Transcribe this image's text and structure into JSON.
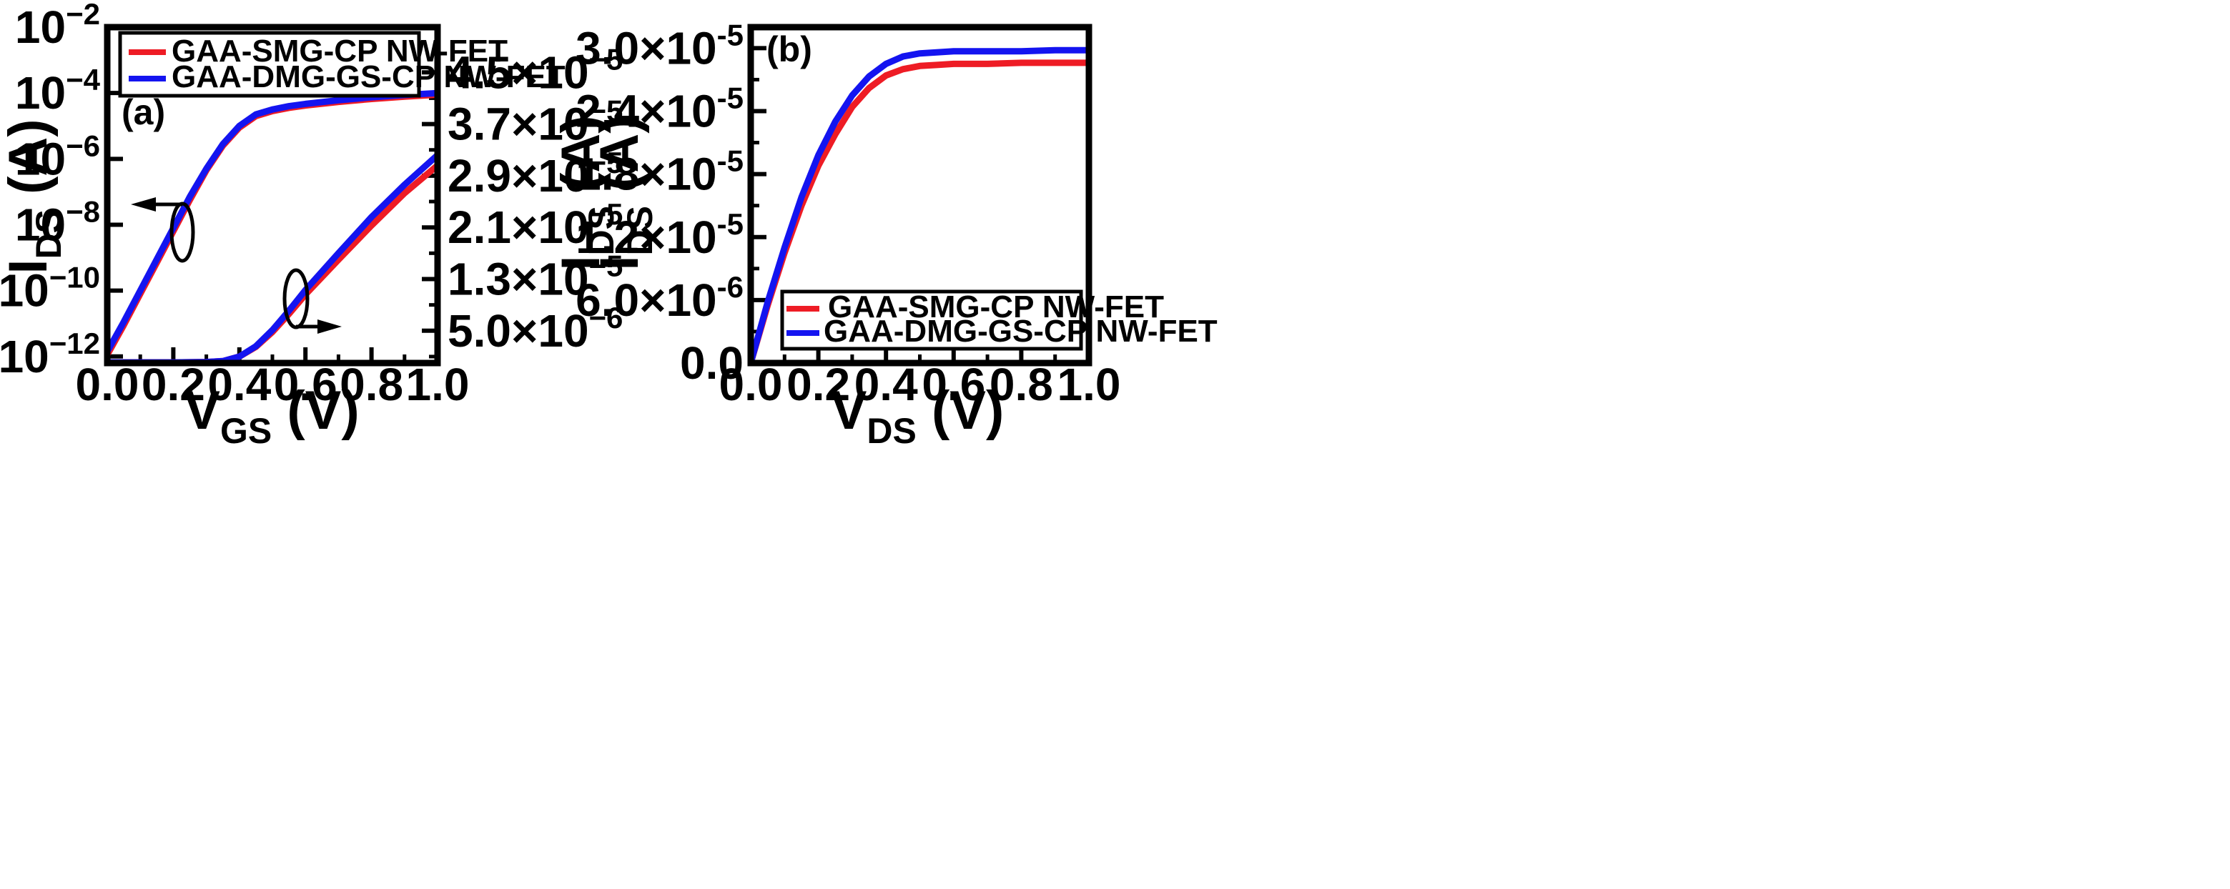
{
  "colors": {
    "series1": "#ee1c25",
    "series2": "#1414f0",
    "axis": "#000000",
    "background": "#ffffff"
  },
  "chart_data": [
    {
      "type": "line",
      "panel_label": "(a)",
      "xlabel": {
        "main": "V",
        "sub": "GS",
        "unit": " (V)"
      },
      "ylabel_left": {
        "main": "I",
        "sub": "DS",
        "unit": " (A)"
      },
      "ylabel_right": {
        "main": "I",
        "sub": "DS",
        "unit": " (A)"
      },
      "xlim": [
        0,
        1.0
      ],
      "ylim_left_log10": [
        -12.2,
        -2
      ],
      "ylim_right": [
        0,
        5.2e-05
      ],
      "yscale_left": "log",
      "yscale_right": "linear",
      "x_ticks": [
        "0.0",
        "0.2",
        "0.4",
        "0.6",
        "0.8",
        "1.0"
      ],
      "y_ticks_left": [
        {
          "base": "10",
          "exp": "−2",
          "value": -2
        },
        {
          "base": "10",
          "exp": "−4",
          "value": -4
        },
        {
          "base": "10",
          "exp": "−6",
          "value": -6
        },
        {
          "base": "10",
          "exp": "−8",
          "value": -8
        },
        {
          "base": "10",
          "exp": "−10",
          "value": -10
        },
        {
          "base": "10",
          "exp": "−12",
          "value": -12
        }
      ],
      "y_ticks_right": [
        {
          "mant": "4.5×10",
          "exp": "−5",
          "value": 4.5e-05
        },
        {
          "mant": "3.7×10",
          "exp": "−5",
          "value": 3.7e-05
        },
        {
          "mant": "2.9×10",
          "exp": "−5",
          "value": 2.9e-05
        },
        {
          "mant": "2.1×10",
          "exp": "−5",
          "value": 2.1e-05
        },
        {
          "mant": "1.3×10",
          "exp": "−5",
          "value": 1.3e-05
        },
        {
          "mant": "5.0×10",
          "exp": "−6",
          "value": 5e-06
        }
      ],
      "legend_position": "top-left",
      "series": [
        {
          "name": "GAA-SMG-CP NW-FET",
          "axis": "left",
          "color": "#ee1c25",
          "x": [
            0.0,
            0.05,
            0.1,
            0.15,
            0.2,
            0.25,
            0.3,
            0.35,
            0.4,
            0.45,
            0.5,
            0.55,
            0.6,
            0.7,
            0.8,
            0.9,
            1.0
          ],
          "y_log10": [
            -11.95,
            -11.05,
            -10.1,
            -9.15,
            -8.2,
            -7.25,
            -6.35,
            -5.6,
            -5.05,
            -4.7,
            -4.55,
            -4.45,
            -4.38,
            -4.27,
            -4.18,
            -4.11,
            -4.05
          ]
        },
        {
          "name": "GAA-DMG-GS-CP NW-FET",
          "axis": "left",
          "color": "#1414f0",
          "x": [
            0.0,
            0.05,
            0.1,
            0.15,
            0.2,
            0.25,
            0.3,
            0.35,
            0.4,
            0.45,
            0.5,
            0.55,
            0.6,
            0.7,
            0.8,
            0.9,
            1.0
          ],
          "y_log10": [
            -11.85,
            -10.95,
            -10.0,
            -9.05,
            -8.1,
            -7.15,
            -6.3,
            -5.55,
            -5.0,
            -4.65,
            -4.5,
            -4.4,
            -4.33,
            -4.22,
            -4.13,
            -4.06,
            -4.0
          ]
        },
        {
          "name": "GAA-SMG-CP NW-FET",
          "axis": "right",
          "color": "#ee1c25",
          "x": [
            0.0,
            0.1,
            0.2,
            0.3,
            0.35,
            0.4,
            0.45,
            0.5,
            0.55,
            0.6,
            0.7,
            0.8,
            0.9,
            1.0
          ],
          "y": [
            1e-07,
            1e-07,
            1e-07,
            1.5e-07,
            3e-07,
            1e-06,
            2.5e-06,
            4.8e-06,
            7.6e-06,
            1.06e-05,
            1.6e-05,
            2.13e-05,
            2.63e-05,
            3.06e-05
          ]
        },
        {
          "name": "GAA-DMG-GS-CP NW-FET",
          "axis": "right",
          "color": "#1414f0",
          "x": [
            0.0,
            0.1,
            0.2,
            0.3,
            0.35,
            0.4,
            0.45,
            0.5,
            0.55,
            0.6,
            0.7,
            0.8,
            0.9,
            1.0
          ],
          "y": [
            1e-07,
            1e-07,
            1e-07,
            1.5e-07,
            3e-07,
            1e-06,
            2.6e-06,
            5.1e-06,
            8.1e-06,
            1.13e-05,
            1.7e-05,
            2.26e-05,
            2.76e-05,
            3.22e-05
          ]
        }
      ]
    },
    {
      "type": "line",
      "panel_label": "(b)",
      "xlabel": {
        "main": "V",
        "sub": "DS",
        "unit": " (V)"
      },
      "ylabel": {
        "main": "I",
        "sub": "DS",
        "unit": " (A)"
      },
      "xlim": [
        0,
        1.0
      ],
      "ylim": [
        0,
        3.2e-05
      ],
      "x_ticks": [
        "0.0",
        "0.2",
        "0.4",
        "0.6",
        "0.8",
        "1.0"
      ],
      "y_ticks": [
        {
          "mant": "3.0×10",
          "exp": "-5",
          "value": 3e-05
        },
        {
          "mant": "2.4×10",
          "exp": "-5",
          "value": 2.4e-05
        },
        {
          "mant": "1.8×10",
          "exp": "-5",
          "value": 1.8e-05
        },
        {
          "mant": "1.2×10",
          "exp": "-5",
          "value": 1.2e-05
        },
        {
          "mant": "6.0×10",
          "exp": "-6",
          "value": 6e-06
        },
        {
          "mant": "0.0",
          "exp": "",
          "value": 0
        }
      ],
      "legend_position": "bottom-right",
      "series": [
        {
          "name": "GAA-SMG-CP NW-FET",
          "color": "#ee1c25",
          "x": [
            0.0,
            0.05,
            0.1,
            0.15,
            0.2,
            0.25,
            0.3,
            0.35,
            0.4,
            0.45,
            0.5,
            0.55,
            0.6,
            0.7,
            0.8,
            0.9,
            1.0
          ],
          "y": [
            0.0,
            5.5e-06,
            1.05e-05,
            1.5e-05,
            1.88e-05,
            2.18e-05,
            2.44e-05,
            2.62e-05,
            2.74e-05,
            2.8e-05,
            2.83e-05,
            2.84e-05,
            2.85e-05,
            2.85e-05,
            2.86e-05,
            2.86e-05,
            2.86e-05
          ]
        },
        {
          "name": "GAA-DMG-GS-CP NW-FET",
          "color": "#1414f0",
          "x": [
            0.0,
            0.05,
            0.1,
            0.15,
            0.2,
            0.25,
            0.3,
            0.35,
            0.4,
            0.45,
            0.5,
            0.55,
            0.6,
            0.7,
            0.8,
            0.9,
            1.0
          ],
          "y": [
            0.0,
            5.8e-06,
            1.1e-05,
            1.58e-05,
            1.98e-05,
            2.3e-05,
            2.55e-05,
            2.73e-05,
            2.85e-05,
            2.92e-05,
            2.95e-05,
            2.96e-05,
            2.97e-05,
            2.97e-05,
            2.97e-05,
            2.98e-05,
            2.98e-05
          ]
        }
      ]
    }
  ]
}
